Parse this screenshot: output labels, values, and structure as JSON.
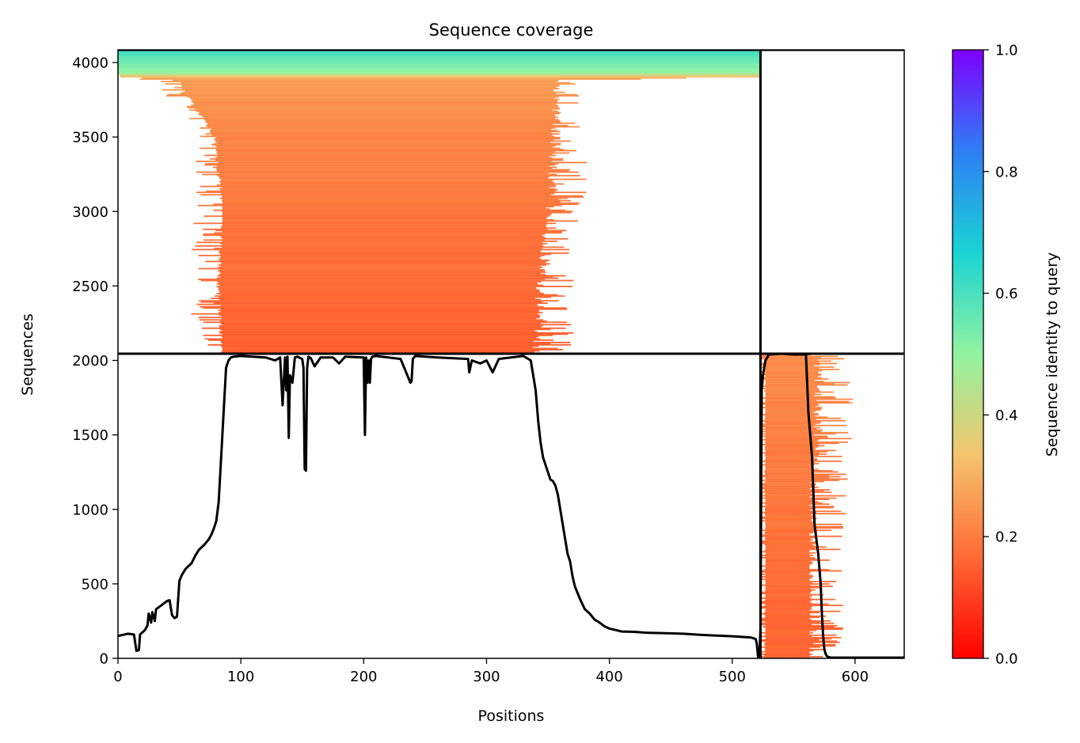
{
  "chart_data": {
    "type": "heatmap",
    "title": "Sequence coverage",
    "xlabel": "Positions",
    "ylabel": "Sequences",
    "xlim": [
      0,
      640
    ],
    "ylim": [
      0,
      4085
    ],
    "xticks": [
      0,
      100,
      200,
      300,
      400,
      500,
      600
    ],
    "yticks": [
      0,
      500,
      1000,
      1500,
      2000,
      2500,
      3000,
      3500,
      4000
    ],
    "grid": false,
    "colorbar": {
      "label": "Sequence identity to query",
      "range": [
        0.0,
        1.0
      ],
      "ticks": [
        0.0,
        0.2,
        0.4,
        0.6,
        0.8,
        1.0
      ],
      "tick_labels": [
        "0.0",
        "0.2",
        "0.4",
        "0.6",
        "0.8",
        "1.0"
      ],
      "colormap": "rainbow_r",
      "stops": [
        "#ff0000",
        "#ff6a35",
        "#f4c36c",
        "#92f3a0",
        "#1ad3d3",
        "#2e7ff5",
        "#7f00ff"
      ]
    },
    "dividers": {
      "vertical_x": 523,
      "horizontal_y": 2045
    },
    "msa_blocks": [
      {
        "name": "block-1",
        "x_range": [
          0,
          523
        ],
        "y_range": [
          2045,
          4085
        ],
        "core_span": {
          "start": 85,
          "end": 335
        },
        "profile": [
          {
            "y": 2045,
            "left": 83,
            "right": 345,
            "identity": 0.15
          },
          {
            "y": 2500,
            "left": 80,
            "right": 348,
            "identity": 0.17
          },
          {
            "y": 3000,
            "left": 84,
            "right": 355,
            "identity": 0.19
          },
          {
            "y": 3500,
            "left": 77,
            "right": 360,
            "identity": 0.22
          },
          {
            "y": 3880,
            "left": 47,
            "right": 363,
            "identity": 0.26
          },
          {
            "y": 3900,
            "left": 2,
            "right": 523,
            "identity": 0.32
          },
          {
            "y": 3930,
            "left": 0,
            "right": 523,
            "identity": 0.5
          },
          {
            "y": 4085,
            "left": 0,
            "right": 523,
            "identity": 0.62
          }
        ]
      },
      {
        "name": "block-2",
        "x_range": [
          523,
          640
        ],
        "y_range": [
          0,
          2045
        ],
        "core_span": {
          "start": 527,
          "end": 563
        },
        "profile": [
          {
            "y": 0,
            "left": 526,
            "right": 565,
            "identity": 0.16
          },
          {
            "y": 500,
            "left": 526,
            "right": 567,
            "identity": 0.17
          },
          {
            "y": 1000,
            "left": 526,
            "right": 570,
            "identity": 0.19
          },
          {
            "y": 1500,
            "left": 526,
            "right": 573,
            "identity": 0.21
          },
          {
            "y": 2000,
            "left": 526,
            "right": 574,
            "identity": 0.23
          },
          {
            "y": 2045,
            "left": 527,
            "right": 570,
            "identity": 0.24
          }
        ]
      }
    ],
    "coverage_line": {
      "x": [
        0,
        8,
        13,
        15,
        17,
        18,
        22,
        24,
        25,
        27,
        28,
        30,
        31,
        36,
        40,
        42,
        44,
        46,
        48,
        50,
        52,
        55,
        60,
        63,
        66,
        70,
        74,
        76,
        78,
        80,
        82,
        84,
        86,
        88,
        90,
        92,
        94,
        100,
        120,
        128,
        132,
        134,
        136,
        137,
        138,
        139,
        140,
        142,
        144,
        146,
        150,
        151,
        152,
        153,
        154,
        155,
        157,
        160,
        165,
        175,
        180,
        185,
        200,
        201,
        202,
        203,
        204,
        205,
        206,
        207,
        210,
        230,
        238,
        239,
        240,
        242,
        260,
        285,
        286,
        288,
        295,
        300,
        305,
        310,
        330,
        336,
        338,
        340,
        342,
        344,
        346,
        348,
        350,
        352,
        354,
        356,
        358,
        360,
        362,
        364,
        366,
        368,
        370,
        372,
        376,
        380,
        384,
        388,
        392,
        396,
        400,
        405,
        410,
        420,
        430,
        440,
        460,
        480,
        500,
        515,
        519,
        520,
        521,
        522,
        523,
        524,
        525,
        527,
        530,
        540,
        550,
        560,
        562,
        565,
        567,
        570,
        572,
        573,
        574,
        575,
        576,
        577,
        578,
        580,
        600,
        640
      ],
      "y": [
        150,
        165,
        160,
        50,
        55,
        160,
        190,
        220,
        300,
        240,
        310,
        250,
        330,
        360,
        385,
        390,
        290,
        270,
        280,
        520,
        560,
        600,
        640,
        690,
        730,
        760,
        800,
        830,
        870,
        920,
        1050,
        1350,
        1650,
        1950,
        2000,
        2020,
        2025,
        2030,
        2020,
        2000,
        2020,
        1700,
        2020,
        1800,
        2025,
        1480,
        1900,
        1850,
        2020,
        2025,
        2010,
        1950,
        1270,
        1260,
        1950,
        2025,
        2015,
        1960,
        2020,
        2020,
        1980,
        2025,
        2020,
        1500,
        2020,
        1850,
        2000,
        1850,
        2010,
        2025,
        2030,
        2010,
        1850,
        1860,
        2010,
        2030,
        2020,
        2010,
        1920,
        2000,
        1980,
        2000,
        1920,
        2010,
        2030,
        2000,
        1900,
        1800,
        1600,
        1450,
        1350,
        1300,
        1250,
        1200,
        1190,
        1160,
        1100,
        1000,
        900,
        800,
        700,
        650,
        550,
        480,
        400,
        330,
        300,
        260,
        240,
        215,
        200,
        190,
        180,
        178,
        172,
        170,
        165,
        155,
        148,
        140,
        130,
        100,
        10,
        5,
        200,
        1800,
        1900,
        2000,
        2040,
        2045,
        2040,
        2040,
        1650,
        1350,
        900,
        700,
        500,
        300,
        150,
        60,
        30,
        15,
        10,
        5,
        5,
        5
      ]
    }
  }
}
